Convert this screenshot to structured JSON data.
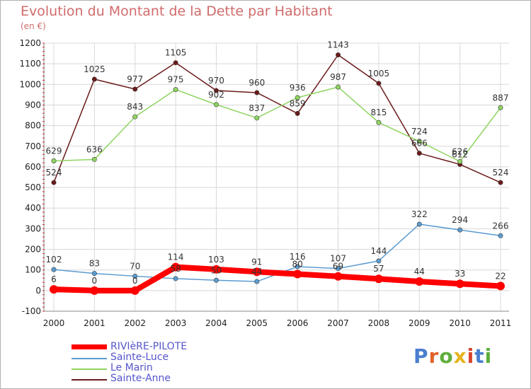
{
  "title": "Evolution du Montant de la Dette par Habitant",
  "subtitle": "(en €)",
  "logo_text": "Proxiti",
  "chart_data": {
    "type": "line",
    "title": "Evolution du Montant de la Dette par Habitant",
    "subtitle": "(en €)",
    "xlabel": "",
    "ylabel": "",
    "x": [
      "2000",
      "2001",
      "2002",
      "2003",
      "2004",
      "2005",
      "2006",
      "2007",
      "2008",
      "2009",
      "2010",
      "2011"
    ],
    "ylim": [
      -100,
      1200
    ],
    "yticks": [
      "-100",
      "0",
      "100",
      "200",
      "300",
      "400",
      "500",
      "600",
      "700",
      "800",
      "900",
      "1000",
      "1100",
      "1200"
    ],
    "grid": true,
    "legend_position": "bottom-left",
    "series": [
      {
        "name": "RIVIèRE-PILOTE",
        "color": "#ff0000",
        "values": [
          6,
          0,
          0,
          114,
          103,
          91,
          80,
          69,
          57,
          44,
          33,
          22
        ],
        "labels": [
          "6",
          "0",
          "0",
          "114",
          "103",
          "91",
          "80",
          "69",
          "57",
          "44",
          "33",
          "22"
        ]
      },
      {
        "name": "Sainte-Luce",
        "color": "#5b9bd0",
        "values": [
          102,
          83,
          70,
          58,
          50,
          44,
          116,
          107,
          144,
          322,
          294,
          266
        ],
        "labels": [
          "102",
          "83",
          "70",
          "58",
          "50",
          "44",
          "116",
          "107",
          "144",
          "322",
          "294",
          "266"
        ]
      },
      {
        "name": "Le Marin",
        "color": "#8fd460",
        "values": [
          629,
          636,
          843,
          975,
          902,
          837,
          936,
          987,
          815,
          724,
          626,
          887
        ],
        "labels": [
          "629",
          "636",
          "843",
          "975",
          "902",
          "837",
          "936",
          "987",
          "815",
          "724",
          "626",
          "887"
        ]
      },
      {
        "name": "Sainte-Anne",
        "color": "#6b1a1a",
        "values": [
          524,
          1025,
          977,
          1105,
          970,
          960,
          859,
          1143,
          1005,
          666,
          612,
          524
        ],
        "labels": [
          "524",
          "1025",
          "977",
          "1105",
          "970",
          "960",
          "859",
          "1143",
          "1005",
          "666",
          "612",
          "524"
        ]
      }
    ]
  }
}
